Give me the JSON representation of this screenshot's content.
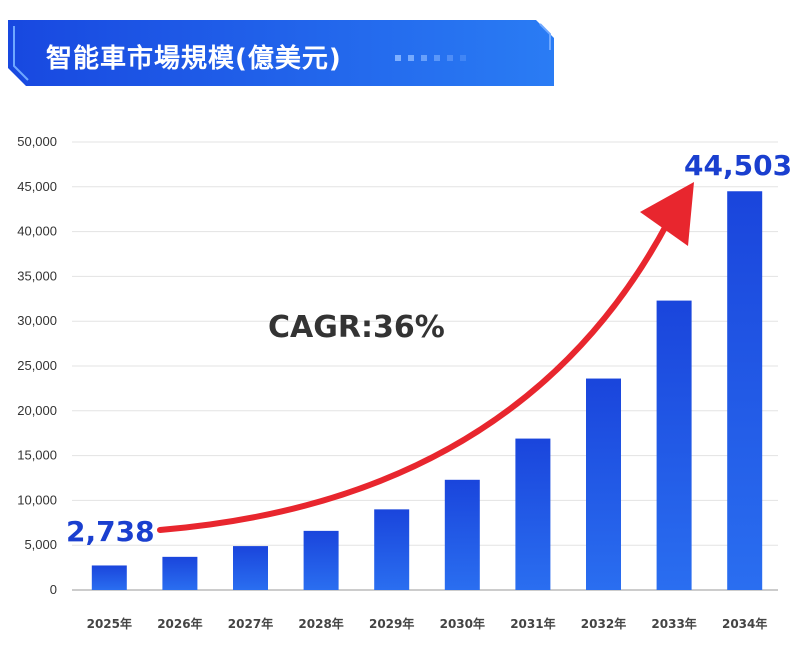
{
  "banner": {
    "title": "智能車市場規模(億美元)"
  },
  "colors": {
    "bar": "#1f4fe0",
    "bar_dark": "#1238c8",
    "arrow": "#e8262e",
    "banner": "#1a56e8",
    "callout": "#1a3fcf"
  },
  "annotations": {
    "start_value": "2,738",
    "end_value": "44,503",
    "cagr": "CAGR:36%"
  },
  "chart_data": {
    "type": "bar",
    "title": "智能車市場規模(億美元)",
    "categories": [
      "2025年",
      "2026年",
      "2027年",
      "2028年",
      "2029年",
      "2030年",
      "2031年",
      "2032年",
      "2033年",
      "2034年"
    ],
    "values": [
      2738,
      3700,
      4900,
      6600,
      9000,
      12300,
      16900,
      23600,
      32300,
      44503
    ],
    "ylim": [
      0,
      50000
    ],
    "yticks": [
      "0",
      "5,000",
      "10,000",
      "15,000",
      "20,000",
      "25,000",
      "30,000",
      "35,000",
      "40,000",
      "45,000",
      "50,000"
    ],
    "grid": true,
    "legend": "none"
  }
}
